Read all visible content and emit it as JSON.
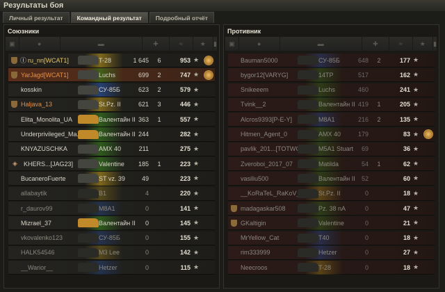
{
  "window": {
    "title": "Результаты боя"
  },
  "tabs": [
    {
      "label": "Личный результат",
      "active": false
    },
    {
      "label": "Командный результат",
      "active": true
    },
    {
      "label": "Подробный отчёт",
      "active": false
    }
  ],
  "colors": {
    "heavy": "#c9a21a",
    "td": "#2a5ab8",
    "light": "#3a8a1c",
    "platoon": "#e0924a",
    "me_row": "#5a2e1a"
  },
  "columns": [
    "squad-icon",
    "player-icon",
    "tank-icon",
    "damage-icon",
    "frags-icon",
    "xp-icon",
    "medal-icon"
  ],
  "allies": {
    "title": "Союзники",
    "rows": [
      {
        "name": "ru_nn[WCAT1]",
        "tank": "T-28",
        "cls": "heavy",
        "damage": "1 645",
        "frags": "6",
        "xp": "953",
        "alive": true,
        "platoon": true,
        "squad": "1",
        "medal": true,
        "nameColor": "#e3c66a"
      },
      {
        "name": "YarJagd[WCAT1]",
        "tank": "Luchs",
        "cls": "light",
        "damage": "699",
        "frags": "2",
        "xp": "747",
        "alive": true,
        "platoon": true,
        "me": true,
        "medal": true,
        "nameColor": "#e0924a"
      },
      {
        "name": "kosskin",
        "tank": "СУ-85Б",
        "cls": "td",
        "damage": "623",
        "frags": "2",
        "xp": "579",
        "alive": true
      },
      {
        "name": "Haljava_13",
        "tank": "St.Pz. II",
        "cls": "heavy",
        "damage": "621",
        "frags": "3",
        "xp": "446",
        "alive": true,
        "platoon": true,
        "nameColor": "#e0924a"
      },
      {
        "name": "Elita_Monolita_UA",
        "tank": "Валентайн II",
        "cls": "light",
        "damage": "363",
        "frags": "1",
        "xp": "557",
        "alive": true
      },
      {
        "name": "Underprivileged_Ma...",
        "tank": "Валентайн II",
        "cls": "light",
        "damage": "244",
        "frags": "",
        "xp": "282",
        "alive": true
      },
      {
        "name": "KNYAZUSCHKA",
        "tank": "AMX 40",
        "cls": "light",
        "damage": "211",
        "frags": "",
        "xp": "275",
        "alive": true
      },
      {
        "name": "KHERS...[JAG23]",
        "tank": "Valentine",
        "cls": "light",
        "damage": "185",
        "frags": "1",
        "xp": "223",
        "alive": true,
        "diamond": true
      },
      {
        "name": "BucaneroFuerte",
        "tank": "ST vz. 39",
        "cls": "heavy",
        "damage": "49",
        "frags": "",
        "xp": "223",
        "alive": true
      },
      {
        "name": "allabaytik",
        "tank": "B1",
        "cls": "heavy",
        "damage": "4",
        "frags": "",
        "xp": "220",
        "alive": false
      },
      {
        "name": "r_daurov99",
        "tank": "M8A1",
        "cls": "td",
        "damage": "0",
        "frags": "",
        "xp": "141",
        "alive": false
      },
      {
        "name": "Mizrael_37",
        "tank": "Валентайн II",
        "cls": "light",
        "damage": "0",
        "frags": "",
        "xp": "145",
        "alive": true
      },
      {
        "name": "vkovalenko123",
        "tank": "СУ-85Б",
        "cls": "td",
        "damage": "0",
        "frags": "",
        "xp": "155",
        "alive": false
      },
      {
        "name": "HALK54546",
        "tank": "M3 Lee",
        "cls": "heavy",
        "damage": "0",
        "frags": "",
        "xp": "142",
        "alive": false
      },
      {
        "name": "__Warior__",
        "tank": "Hetzer",
        "cls": "td",
        "damage": "0",
        "frags": "",
        "xp": "115",
        "alive": false
      }
    ]
  },
  "enemies": {
    "title": "Противник",
    "rows": [
      {
        "name": "Bauman5000",
        "tank": "СУ-85Б",
        "cls": "td",
        "damage": "648",
        "frags": "2",
        "xp": "177",
        "alive": false
      },
      {
        "name": "bygor12[VARYG]",
        "tank": "14TP",
        "cls": "light",
        "damage": "517",
        "frags": "",
        "xp": "162",
        "alive": false
      },
      {
        "name": "Snikeeem",
        "tank": "Luchs",
        "cls": "light",
        "damage": "460",
        "frags": "",
        "xp": "241",
        "alive": false
      },
      {
        "name": "Tvink__2",
        "tank": "Валентайн II",
        "cls": "light",
        "damage": "419",
        "frags": "1",
        "xp": "205",
        "alive": false
      },
      {
        "name": "Alcros9393[P-E-Y]",
        "tank": "M8A1",
        "cls": "td",
        "damage": "216",
        "frags": "2",
        "xp": "135",
        "alive": false
      },
      {
        "name": "Hitmen_Agent_0",
        "tank": "AMX 40",
        "cls": "light",
        "damage": "179",
        "frags": "",
        "xp": "83",
        "alive": false,
        "medal": true
      },
      {
        "name": "pavlik_201...[TOTWC]",
        "tank": "M5A1 Stuart",
        "cls": "light",
        "damage": "69",
        "frags": "",
        "xp": "36",
        "alive": false
      },
      {
        "name": "Zveroboi_2017_07",
        "tank": "Matilda",
        "cls": "light",
        "damage": "54",
        "frags": "1",
        "xp": "62",
        "alive": false
      },
      {
        "name": "vasiliu500",
        "tank": "Валентайн II",
        "cls": "light",
        "damage": "52",
        "frags": "",
        "xp": "60",
        "alive": false
      },
      {
        "name": "__KoRaTeL_RaKoV__",
        "tank": "St.Pz. II",
        "cls": "heavy",
        "damage": "0",
        "frags": "",
        "xp": "18",
        "alive": false
      },
      {
        "name": "madagaskar508",
        "tank": "Pz. 38 nA",
        "cls": "light",
        "damage": "0",
        "frags": "",
        "xp": "47",
        "alive": false,
        "platoon": true
      },
      {
        "name": "GKaltigin",
        "tank": "Valentine",
        "cls": "light",
        "damage": "0",
        "frags": "",
        "xp": "21",
        "alive": false,
        "platoon": true
      },
      {
        "name": "MrYellow_Cat",
        "tank": "T40",
        "cls": "td",
        "damage": "0",
        "frags": "",
        "xp": "18",
        "alive": false
      },
      {
        "name": "rim333999",
        "tank": "Hetzer",
        "cls": "td",
        "damage": "0",
        "frags": "",
        "xp": "27",
        "alive": false
      },
      {
        "name": "Neecroos",
        "tank": "T-28",
        "cls": "heavy",
        "damage": "0",
        "frags": "",
        "xp": "18",
        "alive": false
      }
    ]
  }
}
